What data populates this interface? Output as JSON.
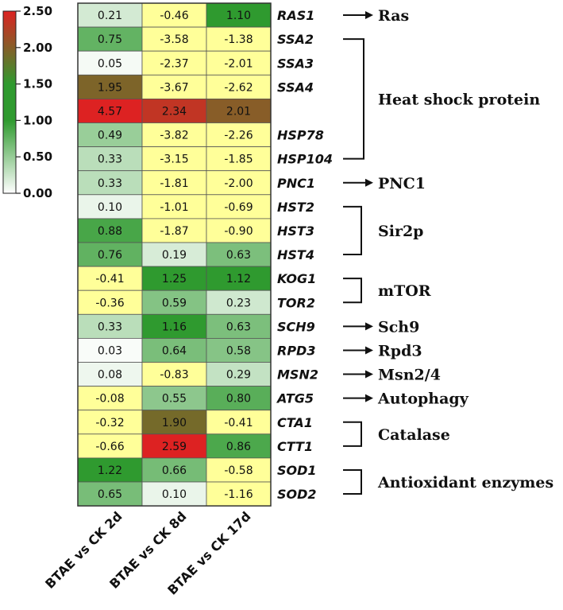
{
  "chart_data": {
    "type": "heatmap",
    "columns": [
      "BTAE vs CK 2d",
      "BTAE vs CK  8d",
      "BTAE vs CK 17d"
    ],
    "rows": [
      {
        "gene": "RAS1",
        "values": [
          0.21,
          -0.46,
          1.1
        ]
      },
      {
        "gene": "SSA2",
        "values": [
          0.75,
          -3.58,
          -1.38
        ]
      },
      {
        "gene": "SSA3",
        "values": [
          0.05,
          -2.37,
          -2.01
        ]
      },
      {
        "gene": "SSA4",
        "values": [
          1.95,
          -3.67,
          -2.62
        ]
      },
      {
        "gene": "",
        "values": [
          4.57,
          2.34,
          2.01
        ]
      },
      {
        "gene": "HSP78",
        "values": [
          0.49,
          -3.82,
          -2.26
        ]
      },
      {
        "gene": "HSP104",
        "values": [
          0.33,
          -3.15,
          -1.85
        ]
      },
      {
        "gene": "PNC1",
        "values": [
          0.33,
          -1.81,
          -2.0
        ]
      },
      {
        "gene": "HST2",
        "values": [
          0.1,
          -1.01,
          -0.69
        ]
      },
      {
        "gene": "HST3",
        "values": [
          0.88,
          -1.87,
          -0.9
        ]
      },
      {
        "gene": "HST4",
        "values": [
          0.76,
          0.19,
          0.63
        ]
      },
      {
        "gene": "KOG1",
        "values": [
          -0.41,
          1.25,
          1.12
        ]
      },
      {
        "gene": "TOR2",
        "values": [
          -0.36,
          0.59,
          0.23
        ]
      },
      {
        "gene": "SCH9",
        "values": [
          0.33,
          1.16,
          0.63
        ]
      },
      {
        "gene": "RPD3",
        "values": [
          0.03,
          0.64,
          0.58
        ]
      },
      {
        "gene": "MSN2",
        "values": [
          0.08,
          -0.83,
          0.29
        ]
      },
      {
        "gene": "ATG5",
        "values": [
          -0.08,
          0.55,
          0.8
        ]
      },
      {
        "gene": "CTA1",
        "values": [
          -0.32,
          1.9,
          -0.41
        ]
      },
      {
        "gene": "CTT1",
        "values": [
          -0.66,
          2.59,
          0.86
        ]
      },
      {
        "gene": "SOD1",
        "values": [
          1.22,
          0.66,
          -0.58
        ]
      },
      {
        "gene": "SOD2",
        "values": [
          0.65,
          0.1,
          -1.16
        ]
      }
    ],
    "groups": [
      {
        "label": "Ras",
        "start": 0,
        "end": 0,
        "mark": "arrow"
      },
      {
        "label": "Heat  shock protein",
        "start": 1,
        "end": 6,
        "mark": "bracket"
      },
      {
        "label": "PNC1",
        "start": 7,
        "end": 7,
        "mark": "arrow"
      },
      {
        "label": "Sir2p",
        "start": 8,
        "end": 10,
        "mark": "bracket"
      },
      {
        "label": "mTOR",
        "start": 11,
        "end": 12,
        "mark": "bracket"
      },
      {
        "label": "Sch9",
        "start": 13,
        "end": 13,
        "mark": "arrow"
      },
      {
        "label": "Rpd3",
        "start": 14,
        "end": 14,
        "mark": "arrow"
      },
      {
        "label": "Msn2/4",
        "start": 15,
        "end": 15,
        "mark": "arrow"
      },
      {
        "label": "Autophagy",
        "start": 16,
        "end": 16,
        "mark": "arrow"
      },
      {
        "label": "Catalase",
        "start": 17,
        "end": 18,
        "mark": "bracket"
      },
      {
        "label": "Antioxidant enzymes",
        "start": 19,
        "end": 20,
        "mark": "bracket"
      }
    ],
    "colorbar": {
      "range": [
        0,
        2.5
      ],
      "ticks": [
        "2.50",
        "2.00",
        "1.50",
        "1.00",
        "0.50",
        "0.00"
      ],
      "colors": {
        "low": "#ffffff",
        "mid": "#2f9a2f",
        "high": "#dd2222",
        "negative": "#ffff99"
      }
    }
  }
}
